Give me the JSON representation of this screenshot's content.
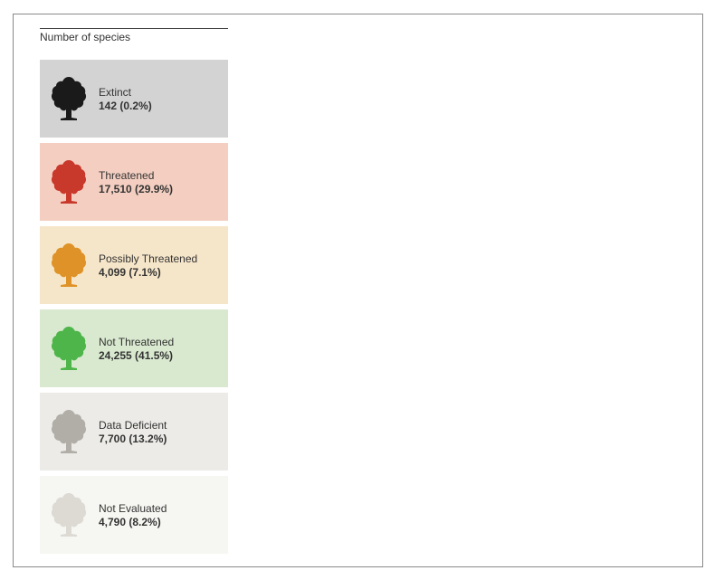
{
  "heading": "Number of species",
  "chart_data": {
    "type": "pictogram",
    "title": "Number of species",
    "grid": {
      "rows": 10,
      "columns": 10
    },
    "unit_percent": 1,
    "categories": [
      {
        "name": "Extinct",
        "value_text": "142 (0.2%)",
        "count": 142,
        "percent": 0.2,
        "color": "#1a1a1a",
        "background": "#d3d3d3"
      },
      {
        "name": "Threatened",
        "value_text": "17,510 (29.9%)",
        "count": 17510,
        "percent": 29.9,
        "color": "#c8382b",
        "background": "#f4cfc1"
      },
      {
        "name": "Possibly Threatened",
        "value_text": "4,099 (7.1%)",
        "count": 4099,
        "percent": 7.1,
        "color": "#df9227",
        "background": "#f6e6c9"
      },
      {
        "name": "Not Threatened",
        "value_text": "24,255 (41.5%)",
        "count": 24255,
        "percent": 41.5,
        "color": "#4db549",
        "background": "#d9e9cf"
      },
      {
        "name": "Data Deficient",
        "value_text": "7,700 (13.2%)",
        "count": 7700,
        "percent": 13.2,
        "color": "#b0aea7",
        "background": "#ecebe7"
      },
      {
        "name": "Not Evaluated",
        "value_text": "4,790 (8.2%)",
        "count": 4790,
        "percent": 8.2,
        "color": "#dcdad2",
        "background": "#f6f6f2"
      }
    ]
  }
}
